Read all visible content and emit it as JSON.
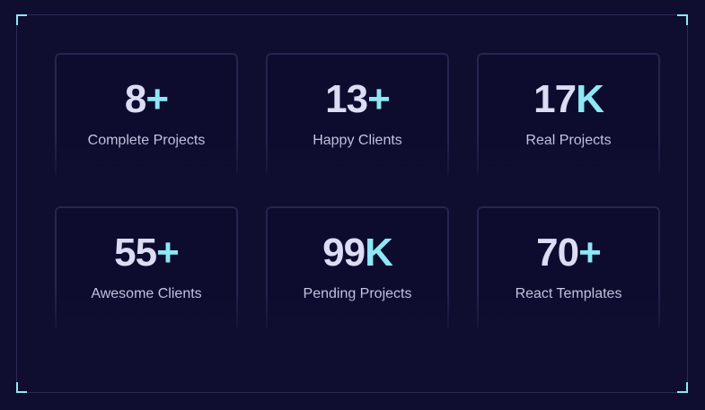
{
  "stats": [
    {
      "number": "8",
      "suffix": "+",
      "label": "Complete Projects"
    },
    {
      "number": "13",
      "suffix": "+",
      "label": "Happy Clients"
    },
    {
      "number": "17",
      "suffix": "K",
      "label": "Real Projects"
    },
    {
      "number": "55",
      "suffix": "+",
      "label": "Awesome Clients"
    },
    {
      "number": "99",
      "suffix": "K",
      "label": "Pending Projects"
    },
    {
      "number": "70",
      "suffix": "+",
      "label": "React Templates"
    }
  ],
  "colors": {
    "background": "#0f0e31",
    "accent": "#8ee7f2",
    "number": "#dcdcf4",
    "label": "#c8c9e6",
    "card_border": "#25264f"
  }
}
